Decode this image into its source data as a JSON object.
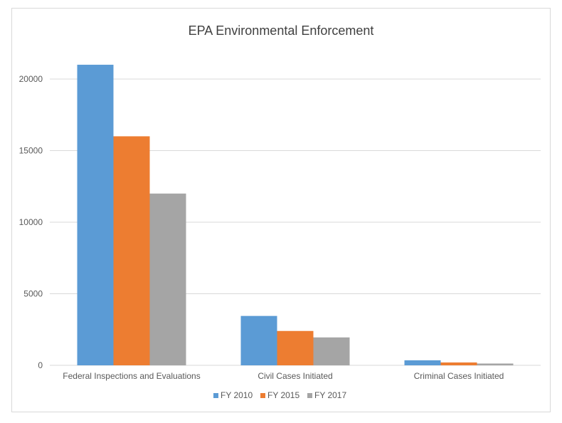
{
  "chart_data": {
    "type": "bar",
    "title": "EPA Environmental Enforcement",
    "xlabel": "",
    "ylabel": "",
    "categories": [
      "Federal Inspections and Evaluations",
      "Civil Cases Initiated",
      "Criminal Cases Initiated"
    ],
    "series": [
      {
        "name": "FY 2010",
        "values": [
          21000,
          3450,
          350
        ],
        "color": "#5b9bd5"
      },
      {
        "name": "FY 2015",
        "values": [
          16000,
          2400,
          200
        ],
        "color": "#ed7d31"
      },
      {
        "name": "FY 2017",
        "values": [
          12000,
          1950,
          125
        ],
        "color": "#a5a5a5"
      }
    ],
    "ylim": [
      0,
      25000
    ],
    "yticks": [
      0,
      5000,
      10000,
      15000,
      20000
    ],
    "grid": true,
    "legend": "bottom"
  }
}
